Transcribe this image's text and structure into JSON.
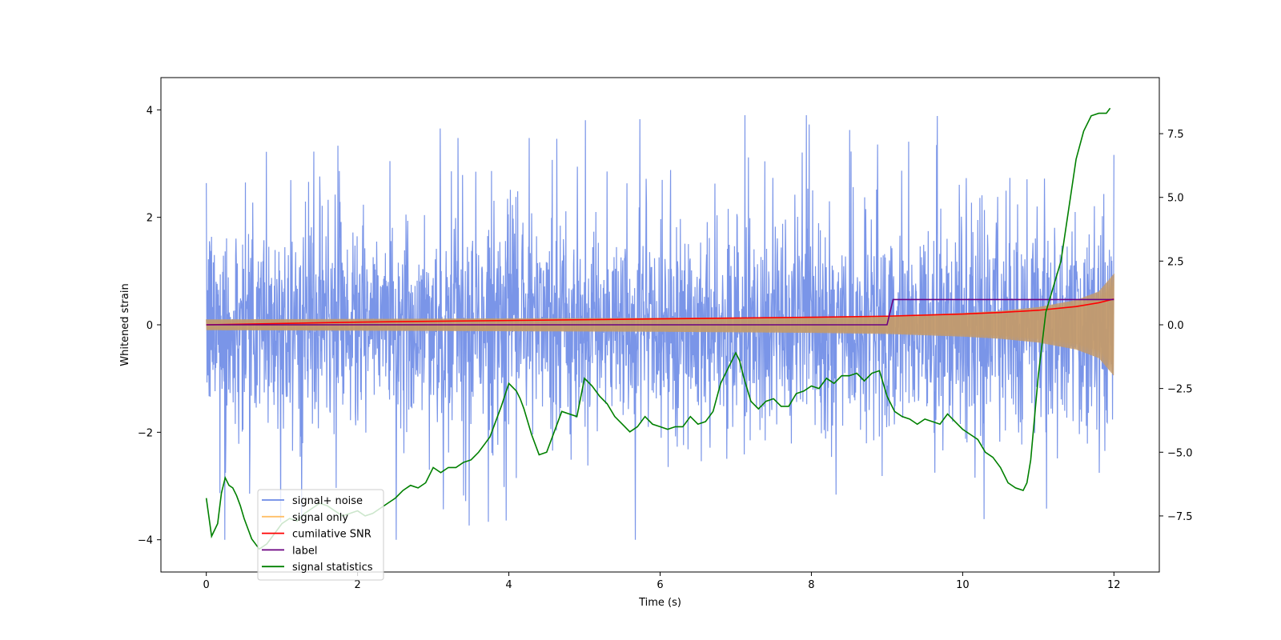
{
  "chart_data": {
    "type": "line",
    "title": "",
    "xlabel": "Time (s)",
    "ylabel": "Whitened strain",
    "y2label": "",
    "xlim": [
      -0.6,
      12.6
    ],
    "ylim": [
      -4.6,
      4.6
    ],
    "y2lim": [
      -9.7,
      9.7
    ],
    "x_ticks": [
      0,
      2,
      4,
      6,
      8,
      10,
      12
    ],
    "x_tick_labels": [
      "0",
      "2",
      "4",
      "6",
      "8",
      "10",
      "12"
    ],
    "y_ticks": [
      -4,
      -2,
      0,
      2,
      4
    ],
    "y_tick_labels": [
      "−4",
      "−2",
      "0",
      "2",
      "4"
    ],
    "y2_ticks": [
      -7.5,
      -5.0,
      -2.5,
      0.0,
      2.5,
      5.0,
      7.5
    ],
    "y2_tick_labels": [
      "−7.5",
      "−5.0",
      "−2.5",
      "0.0",
      "2.5",
      "5.0",
      "7.5"
    ],
    "grid": false,
    "legend_position": "lower-left",
    "series": [
      {
        "name": "signal+ noise",
        "color": "#6b8ae6",
        "axis": "left",
        "style": "noisy-band",
        "x_range": [
          0,
          12
        ],
        "typical_range": [
          -1.4,
          1.5
        ],
        "max_value": 3.9,
        "min_value": -4.0
      },
      {
        "name": "signal only",
        "color": "#ffa500",
        "axis": "left",
        "style": "chirp-envelope",
        "x": [
          0,
          2,
          4,
          6,
          8,
          9,
          10,
          10.5,
          11,
          11.5,
          11.8,
          12
        ],
        "envelope": [
          0.1,
          0.11,
          0.12,
          0.13,
          0.15,
          0.17,
          0.22,
          0.26,
          0.33,
          0.46,
          0.62,
          0.95
        ]
      },
      {
        "name": "cumilative SNR",
        "color": "#ff0000",
        "axis": "left",
        "x": [
          0,
          2,
          4,
          6,
          8,
          9,
          10,
          10.5,
          11,
          11.5,
          11.8,
          12
        ],
        "values": [
          0.0,
          0.05,
          0.08,
          0.11,
          0.14,
          0.16,
          0.2,
          0.23,
          0.27,
          0.34,
          0.41,
          0.48
        ]
      },
      {
        "name": "label",
        "color": "#6a0080",
        "axis": "left",
        "x": [
          0,
          9.0,
          9.08,
          12
        ],
        "values": [
          0,
          0,
          0.47,
          0.47
        ]
      },
      {
        "name": "signal statistics",
        "color": "#008000",
        "axis": "right",
        "x": [
          0,
          0.07,
          0.15,
          0.2,
          0.25,
          0.3,
          0.35,
          0.4,
          0.45,
          0.5,
          0.55,
          0.6,
          0.65,
          0.7,
          0.75,
          0.8,
          0.85,
          0.9,
          1.0,
          1.1,
          1.2,
          1.3,
          1.4,
          1.5,
          1.6,
          1.7,
          1.8,
          1.9,
          2.0,
          2.1,
          2.2,
          2.3,
          2.4,
          2.5,
          2.6,
          2.7,
          2.8,
          2.9,
          3.0,
          3.1,
          3.2,
          3.3,
          3.4,
          3.5,
          3.6,
          3.7,
          3.75,
          3.8,
          3.9,
          4.0,
          4.1,
          4.15,
          4.2,
          4.3,
          4.4,
          4.5,
          4.6,
          4.7,
          4.8,
          4.9,
          5.0,
          5.1,
          5.2,
          5.3,
          5.4,
          5.5,
          5.6,
          5.7,
          5.8,
          5.9,
          6.0,
          6.1,
          6.2,
          6.3,
          6.4,
          6.5,
          6.6,
          6.7,
          6.8,
          6.9,
          7.0,
          7.05,
          7.1,
          7.2,
          7.3,
          7.4,
          7.5,
          7.6,
          7.7,
          7.8,
          7.9,
          8.0,
          8.1,
          8.2,
          8.3,
          8.4,
          8.5,
          8.6,
          8.7,
          8.8,
          8.9,
          9.0,
          9.1,
          9.2,
          9.3,
          9.4,
          9.5,
          9.6,
          9.7,
          9.8,
          9.9,
          10.0,
          10.1,
          10.2,
          10.3,
          10.4,
          10.5,
          10.6,
          10.7,
          10.8,
          10.85,
          10.9,
          11.0,
          11.1,
          11.2,
          11.3,
          11.4,
          11.5,
          11.6,
          11.7,
          11.8,
          11.9,
          11.95
        ],
        "values": [
          -6.8,
          -8.3,
          -7.8,
          -6.6,
          -6.0,
          -6.3,
          -6.4,
          -6.7,
          -7.1,
          -7.6,
          -8.0,
          -8.4,
          -8.6,
          -8.8,
          -8.7,
          -8.6,
          -8.4,
          -8.2,
          -7.8,
          -7.6,
          -7.7,
          -7.4,
          -7.2,
          -7.0,
          -7.1,
          -7.3,
          -7.5,
          -7.4,
          -7.3,
          -7.5,
          -7.4,
          -7.2,
          -7.0,
          -6.8,
          -6.5,
          -6.3,
          -6.4,
          -6.2,
          -5.6,
          -5.8,
          -5.6,
          -5.6,
          -5.4,
          -5.3,
          -5.0,
          -4.6,
          -4.4,
          -4.0,
          -3.2,
          -2.3,
          -2.6,
          -2.9,
          -3.3,
          -4.3,
          -5.1,
          -5.0,
          -4.2,
          -3.4,
          -3.5,
          -3.6,
          -2.1,
          -2.4,
          -2.8,
          -3.1,
          -3.6,
          -3.9,
          -4.2,
          -4.0,
          -3.6,
          -3.9,
          -4.0,
          -4.1,
          -4.0,
          -4.0,
          -3.6,
          -3.9,
          -3.8,
          -3.4,
          -2.3,
          -1.7,
          -1.1,
          -1.4,
          -2.0,
          -3.0,
          -3.3,
          -3.0,
          -2.9,
          -3.2,
          -3.2,
          -2.7,
          -2.6,
          -2.4,
          -2.5,
          -2.1,
          -2.3,
          -2.0,
          -2.0,
          -1.9,
          -2.2,
          -1.9,
          -1.8,
          -2.8,
          -3.4,
          -3.6,
          -3.7,
          -3.9,
          -3.7,
          -3.8,
          -3.9,
          -3.5,
          -3.8,
          -4.1,
          -4.3,
          -4.5,
          -5.0,
          -5.2,
          -5.6,
          -6.2,
          -6.4,
          -6.5,
          -6.2,
          -5.3,
          -2.0,
          0.5,
          1.5,
          2.5,
          4.5,
          6.5,
          7.6,
          8.2,
          8.3,
          8.3,
          8.5
        ]
      }
    ]
  }
}
